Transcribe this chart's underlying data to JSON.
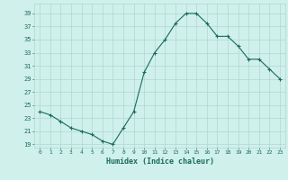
{
  "x": [
    0,
    1,
    2,
    3,
    4,
    5,
    6,
    7,
    8,
    9,
    10,
    11,
    12,
    13,
    14,
    15,
    16,
    17,
    18,
    19,
    20,
    21,
    22,
    23
  ],
  "y": [
    24,
    23.5,
    22.5,
    21.5,
    21,
    20.5,
    19.5,
    19,
    21.5,
    24,
    30,
    33,
    35,
    37.5,
    39,
    39,
    37.5,
    35.5,
    35.5,
    34,
    32,
    32,
    30.5,
    29
  ],
  "line_color": "#1a6b5a",
  "marker_color": "#1a6b5a",
  "bg_color": "#cff0eb",
  "grid_color": "#b0d8d0",
  "xlabel": "Humidex (Indice chaleur)",
  "yticks": [
    19,
    21,
    23,
    25,
    27,
    29,
    31,
    33,
    35,
    37,
    39
  ],
  "xticks": [
    0,
    1,
    2,
    3,
    4,
    5,
    6,
    7,
    8,
    9,
    10,
    11,
    12,
    13,
    14,
    15,
    16,
    17,
    18,
    19,
    20,
    21,
    22,
    23
  ],
  "ylim": [
    18.5,
    40.5
  ],
  "xlim": [
    -0.5,
    23.5
  ]
}
